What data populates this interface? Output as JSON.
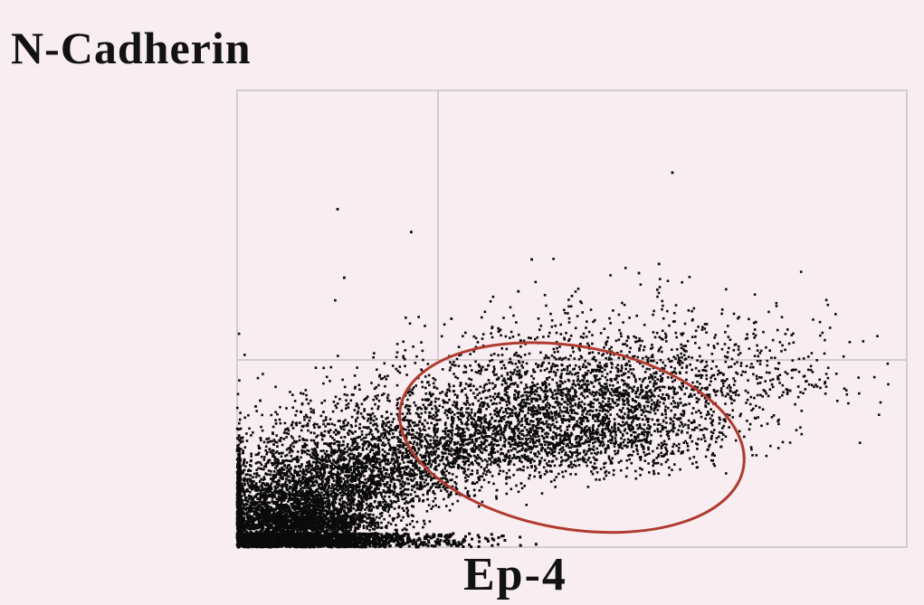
{
  "chart_data": {
    "type": "scatter",
    "title": "",
    "ylabel": "N-Cadherin",
    "xlabel": "Ep-4",
    "xlim": [
      0,
      100
    ],
    "ylim": [
      0,
      100
    ],
    "grid": true,
    "quadrant_gates": {
      "x": 30,
      "y": 41
    },
    "populations": [
      {
        "name": "",
        "center": [
          8,
          4
        ],
        "spread": [
          7,
          4
        ],
        "count": 2600
      },
      {
        "name": "",
        "center": [
          14,
          11
        ],
        "spread": [
          10,
          7
        ],
        "count": 2400
      },
      {
        "name": "",
        "center": [
          28,
          18
        ],
        "spread": [
          12,
          9
        ],
        "count": 1500
      },
      {
        "name": "",
        "center": [
          50,
          22
        ],
        "spread": [
          12,
          10
        ],
        "count": 2200
      },
      {
        "name": "",
        "center": [
          62,
          33
        ],
        "spread": [
          14,
          10
        ],
        "count": 900
      }
    ],
    "sparse_points": [
      [
        15,
        74
      ],
      [
        16,
        59
      ],
      [
        44,
        63
      ],
      [
        26,
        69
      ],
      [
        65,
        82
      ],
      [
        63,
        62
      ],
      [
        32,
        50
      ],
      [
        42,
        56
      ],
      [
        60,
        60
      ],
      [
        50,
        55
      ]
    ],
    "gate_ellipse": {
      "center": [
        50,
        24
      ],
      "radii": [
        26,
        20
      ],
      "rotation_deg": 10
    },
    "colors": {
      "points": "#0a0a0a",
      "gate": "#b03a2e",
      "grid": "#c9c2c4",
      "background": "#f8edf0"
    }
  }
}
